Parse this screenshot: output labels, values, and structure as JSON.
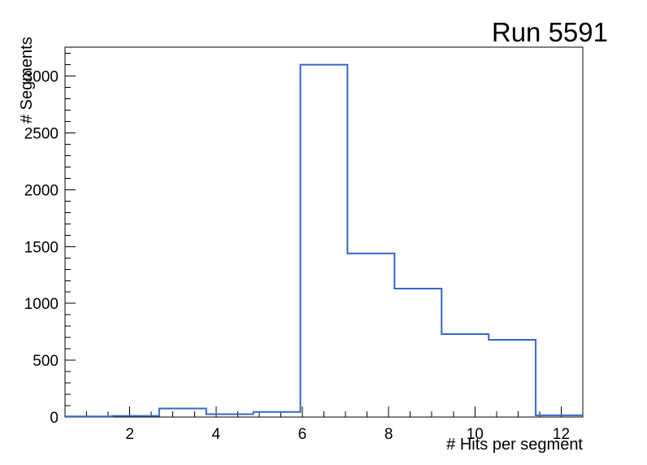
{
  "chart_data": {
    "type": "histogram",
    "title": "Run 5591",
    "xlabel": "# Hits per segment",
    "ylabel": "# Segments",
    "xlim": [
      0.5,
      12.5
    ],
    "ylim": [
      0,
      3255
    ],
    "bin_edges": [
      0.5,
      1.5909,
      2.6818,
      3.7727,
      4.8636,
      5.9545,
      7.0455,
      8.1364,
      9.2273,
      10.3182,
      11.4091,
      12.5
    ],
    "counts": [
      5,
      10,
      75,
      25,
      45,
      3100,
      1440,
      1130,
      730,
      680,
      15
    ],
    "x_major_ticks": [
      2,
      4,
      6,
      8,
      10,
      12
    ],
    "x_minor_step": 0.5,
    "y_major_ticks": [
      0,
      500,
      1000,
      1500,
      2000,
      2500,
      3000
    ],
    "y_minor_step": 100,
    "grid": false,
    "legend": false,
    "line_color": "#3766c8",
    "frame_color": "#000000",
    "background_color": "#ffffff"
  }
}
